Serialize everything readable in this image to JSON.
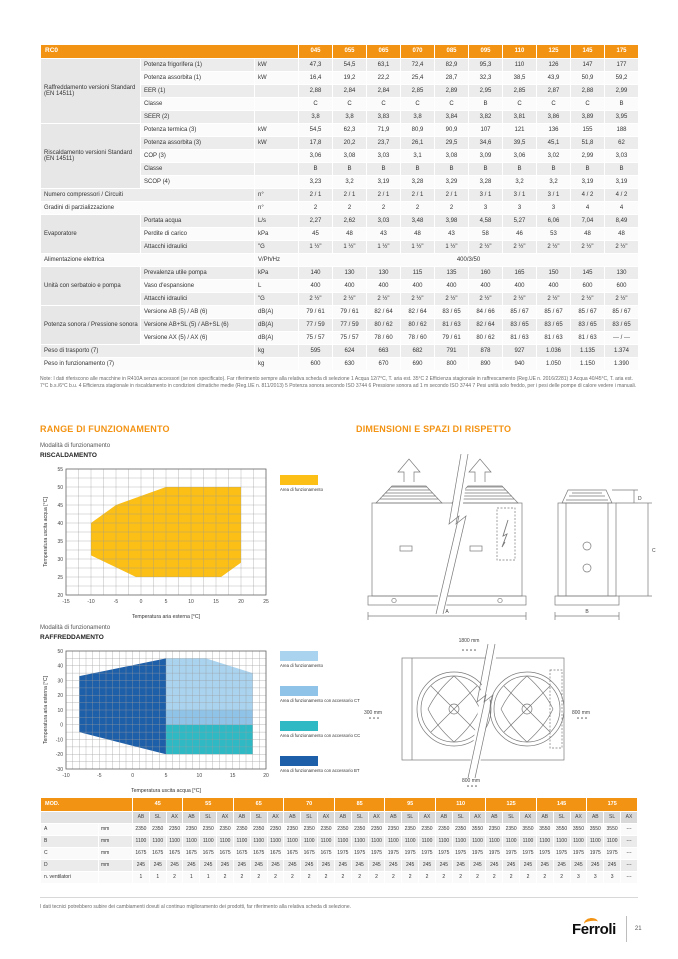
{
  "colors": {
    "orange": "#F39313",
    "yellow": "#FBBF15",
    "blue_light": "#A9D3EF",
    "blue_mid": "#8FC3E8",
    "teal": "#2FB9C5",
    "blue_dark": "#1E5FA9"
  },
  "sections": {
    "range_title": "RANGE DI FUNZIONAMENTO",
    "dim_title": "DIMENSIONI E SPAZI DI RISPETTO"
  },
  "main_table": {
    "title": "RC0",
    "models": [
      "045",
      "055",
      "065",
      "070",
      "085",
      "095",
      "110",
      "125",
      "145",
      "175"
    ],
    "rows": [
      {
        "group": "Raffreddamento versioni Standard (EN 14511)",
        "group_span": 5,
        "label": "Potenza frigorifera (1)",
        "unit": "kW",
        "values": [
          "47,3",
          "54,5",
          "63,1",
          "72,4",
          "82,9",
          "95,3",
          "110",
          "126",
          "147",
          "177"
        ]
      },
      {
        "label": "Potenza assorbita (1)",
        "unit": "kW",
        "values": [
          "16,4",
          "19,2",
          "22,2",
          "25,4",
          "28,7",
          "32,3",
          "38,5",
          "43,9",
          "50,9",
          "59,2"
        ]
      },
      {
        "label": "EER (1)",
        "unit": "",
        "values": [
          "2,88",
          "2,84",
          "2,84",
          "2,85",
          "2,89",
          "2,95",
          "2,85",
          "2,87",
          "2,88",
          "2,99"
        ]
      },
      {
        "label": "Classe",
        "unit": "",
        "values": [
          "C",
          "C",
          "C",
          "C",
          "C",
          "B",
          "C",
          "C",
          "C",
          "B"
        ]
      },
      {
        "label": "SEER (2)",
        "unit": "",
        "values": [
          "3,8",
          "3,8",
          "3,83",
          "3,8",
          "3,84",
          "3,82",
          "3,81",
          "3,86",
          "3,89",
          "3,95"
        ]
      },
      {
        "group": "Riscaldamento versioni Standard (EN 14511)",
        "group_span": 5,
        "label": "Potenza termica (3)",
        "unit": "kW",
        "values": [
          "54,5",
          "62,3",
          "71,9",
          "80,9",
          "90,9",
          "107",
          "121",
          "136",
          "155",
          "188"
        ]
      },
      {
        "label": "Potenza assorbita (3)",
        "unit": "kW",
        "values": [
          "17,8",
          "20,2",
          "23,7",
          "26,1",
          "29,5",
          "34,6",
          "39,5",
          "45,1",
          "51,8",
          "62"
        ]
      },
      {
        "label": "COP (3)",
        "unit": "",
        "values": [
          "3,06",
          "3,08",
          "3,03",
          "3,1",
          "3,08",
          "3,09",
          "3,06",
          "3,02",
          "2,99",
          "3,03"
        ]
      },
      {
        "label": "Classe",
        "unit": "",
        "values": [
          "B",
          "B",
          "B",
          "B",
          "B",
          "B",
          "B",
          "B",
          "B",
          "B"
        ]
      },
      {
        "label": "SCOP (4)",
        "unit": "",
        "values": [
          "3,23",
          "3,2",
          "3,19",
          "3,28",
          "3,29",
          "3,28",
          "3,2",
          "3,2",
          "3,19",
          "3,19"
        ]
      },
      {
        "label": "Numero compressori / Circuiti",
        "label_colspan": 2,
        "unit": "n°",
        "values": [
          "2 / 1",
          "2 / 1",
          "2 / 1",
          "2 / 1",
          "2 / 1",
          "3 / 1",
          "3 / 1",
          "3 / 1",
          "4 / 2",
          "4 / 2"
        ]
      },
      {
        "label": "Gradini di parzializzazione",
        "label_colspan": 2,
        "unit": "n°",
        "values": [
          "2",
          "2",
          "2",
          "2",
          "2",
          "3",
          "3",
          "3",
          "4",
          "4"
        ]
      },
      {
        "group": "Evaporatore",
        "group_span": 3,
        "label": "Portata acqua",
        "unit": "L/s",
        "values": [
          "2,27",
          "2,62",
          "3,03",
          "3,48",
          "3,98",
          "4,58",
          "5,27",
          "6,06",
          "7,04",
          "8,49"
        ]
      },
      {
        "label": "Perdite di carico",
        "unit": "kPa",
        "values": [
          "45",
          "48",
          "43",
          "48",
          "43",
          "58",
          "46",
          "53",
          "48",
          "48"
        ]
      },
      {
        "label": "Attacchi idraulici",
        "unit": "\"G",
        "values": [
          "1 ½\"",
          "1 ½\"",
          "1 ½\"",
          "1 ½\"",
          "1 ½\"",
          "2 ½\"",
          "2 ½\"",
          "2 ½\"",
          "2 ½\"",
          "2 ½\""
        ]
      },
      {
        "label": "Alimentazione elettrica",
        "label_colspan": 2,
        "unit": "V/Ph/Hz",
        "span_value": "400/3/50"
      },
      {
        "group": "Unità con serbatoio e pompa",
        "group_span": 3,
        "label": "Prevalenza utile pompa",
        "unit": "kPa",
        "values": [
          "140",
          "130",
          "130",
          "115",
          "135",
          "160",
          "165",
          "150",
          "145",
          "130"
        ]
      },
      {
        "label": "Vaso d'espansione",
        "unit": "L",
        "values": [
          "400",
          "400",
          "400",
          "400",
          "400",
          "400",
          "400",
          "400",
          "600",
          "600"
        ]
      },
      {
        "label": "Attacchi idraulici",
        "unit": "\"G",
        "values": [
          "2 ½\"",
          "2 ½\"",
          "2 ½\"",
          "2 ½\"",
          "2 ½\"",
          "2 ½\"",
          "2 ½\"",
          "2 ½\"",
          "2 ½\"",
          "2 ½\""
        ]
      },
      {
        "group": "Potenza sonora / Pressione sonora",
        "group_span": 3,
        "label": "Versione AB (5) / AB (6)",
        "unit": "dB(A)",
        "values": [
          "79 / 61",
          "79 / 61",
          "82 / 64",
          "82 / 64",
          "83 / 65",
          "84 / 66",
          "85 / 67",
          "85 / 67",
          "85 / 67",
          "85 / 67"
        ]
      },
      {
        "label": "Versione AB+SL (5) / AB+SL (6)",
        "unit": "dB(A)",
        "values": [
          "77 / 59",
          "77 / 59",
          "80 / 62",
          "80 / 62",
          "81 / 63",
          "82 / 64",
          "83 / 65",
          "83 / 65",
          "83 / 65",
          "83 / 65"
        ]
      },
      {
        "label": "Versione AX (5) / AX (6)",
        "unit": "dB(A)",
        "values": [
          "75 / 57",
          "75 / 57",
          "78 / 60",
          "78 / 60",
          "79 / 61",
          "80 / 62",
          "81 / 63",
          "81 / 63",
          "81 / 63",
          "--- / ---"
        ]
      },
      {
        "label": "Peso di trasporto (7)",
        "label_colspan": 2,
        "unit": "kg",
        "values": [
          "595",
          "624",
          "663",
          "682",
          "791",
          "878",
          "927",
          "1.036",
          "1.135",
          "1.374"
        ]
      },
      {
        "label": "Peso in funzionamento (7)",
        "label_colspan": 2,
        "unit": "kg",
        "values": [
          "600",
          "630",
          "670",
          "690",
          "800",
          "890",
          "940",
          "1.050",
          "1.150",
          "1.390"
        ]
      }
    ]
  },
  "note_text": "Note: I dati riferiscono alle macchine in R410A senza accessori (se non specificato). Far riferimento sempre alla relativa scheda di selezione 1 Acqua 12/7°C, T. aria est. 35°C 2 Efficienza stagionale in raffrescamento (Reg.UE n. 2016/2281) 3 Acqua 40/45°C, T. aria est. 7°C b.s./6°C b.u. 4 Efficienza stagionale in riscaldamento in condizioni climatiche medie (Reg.UE n. 811/2013) 5 Potenza sonora secondo ISO 3744 6 Pressione sonora ad 1 m secondo ISO 3744 7 Pesi unità solo freddo, per i pesi delle pompe di calore vedere i manuali.",
  "chart_data": [
    {
      "type": "area",
      "subtitle": "Modalità di funzionamento",
      "title": "RISCALDAMENTO",
      "xlabel": "Temperatura aria esterna [°C]",
      "ylabel": "Temperatura uscita acqua [°C]",
      "xlim": [
        -15,
        25
      ],
      "ylim": [
        20,
        55
      ],
      "x_ticks": [
        -15,
        -10,
        -5,
        0,
        5,
        10,
        15,
        20,
        25
      ],
      "y_ticks": [
        20,
        25,
        30,
        35,
        40,
        45,
        50,
        55
      ],
      "grid": true,
      "legend_position": "right",
      "regions": [
        {
          "name": "Area di funzionamento",
          "color": "#FBBF15",
          "points": [
            [
              -10,
              40
            ],
            [
              -5,
              45
            ],
            [
              5,
              50
            ],
            [
              20,
              50
            ],
            [
              20,
              29
            ],
            [
              16,
              25
            ],
            [
              -1,
              25
            ],
            [
              -10,
              31
            ]
          ]
        }
      ],
      "legend": [
        {
          "label": "Area di funzionamento",
          "color": "#FBBF15"
        }
      ]
    },
    {
      "type": "area",
      "subtitle": "Modalità di funzionamento",
      "title": "RAFFREDDAMENTO",
      "xlabel": "Temperatura uscita acqua [°C]",
      "ylabel": "Temperatura aria esterna [°C]",
      "xlim": [
        -10,
        20
      ],
      "ylim": [
        -30,
        50
      ],
      "x_ticks": [
        -10,
        -5,
        0,
        5,
        10,
        15,
        20
      ],
      "y_ticks": [
        -30,
        -20,
        -10,
        0,
        10,
        20,
        30,
        40,
        50
      ],
      "grid": true,
      "legend_position": "right",
      "regions": [
        {
          "name": "Area di funzionamento",
          "color": "#A9D3EF",
          "points": [
            [
              5,
              45
            ],
            [
              11,
              45
            ],
            [
              18,
              35
            ],
            [
              18,
              10
            ],
            [
              5,
              10
            ]
          ]
        },
        {
          "name": "Area di funzionamento con accessorio CT",
          "color": "#8FC3E8",
          "points": [
            [
              5,
              10
            ],
            [
              18,
              10
            ],
            [
              18,
              0
            ],
            [
              5,
              0
            ]
          ]
        },
        {
          "name": "Area di funzionamento con accessorio CC",
          "color": "#2FB9C5",
          "points": [
            [
              5,
              0
            ],
            [
              18,
              0
            ],
            [
              18,
              -20
            ],
            [
              5,
              -20
            ]
          ]
        },
        {
          "name": "Area di funzionamento con accessorio BT",
          "color": "#1E5FA9",
          "points": [
            [
              -8,
              33
            ],
            [
              5,
              45
            ],
            [
              5,
              -20
            ],
            [
              -8,
              -5
            ]
          ]
        }
      ],
      "legend": [
        {
          "label": "Area di funzionamento",
          "color": "#A9D3EF"
        },
        {
          "label": "Area di funzionamento con accessorio CT",
          "color": "#8FC3E8"
        },
        {
          "label": "Area di funzionamento con accessorio CC",
          "color": "#2FB9C5"
        },
        {
          "label": "Area di funzionamento con accessorio BT",
          "color": "#1E5FA9"
        }
      ]
    }
  ],
  "drawings": {
    "dim_a": "A",
    "dim_b": "B",
    "dim_c": "C",
    "dim_d": "D",
    "clearance_top": "1800 mm",
    "clearance_left": "300 mm",
    "clearance_right": "800 mm",
    "clearance_bottom": "800 mm"
  },
  "mod_table": {
    "title": "MOD.",
    "groups": [
      "45",
      "55",
      "65",
      "70",
      "85",
      "95",
      "110",
      "125",
      "145",
      "175"
    ],
    "sub_headers": [
      "AB",
      "SL",
      "AX"
    ],
    "rows": [
      {
        "label": "A",
        "unit": "mm",
        "values": [
          "2350",
          "2350",
          "2350",
          "2350",
          "2350",
          "2350",
          "2350",
          "2350",
          "2350",
          "2350",
          "2350",
          "2350",
          "2350",
          "2350",
          "2350",
          "2350",
          "2350",
          "2350",
          "2350",
          "2350",
          "3550",
          "2350",
          "2350",
          "3550",
          "3550",
          "3550",
          "3550",
          "3550",
          "3550",
          "---"
        ]
      },
      {
        "label": "B",
        "unit": "mm",
        "values": [
          "1100",
          "1100",
          "1100",
          "1100",
          "1100",
          "1100",
          "1100",
          "1100",
          "1100",
          "1100",
          "1100",
          "1100",
          "1100",
          "1100",
          "1100",
          "1100",
          "1100",
          "1100",
          "1100",
          "1100",
          "1100",
          "1100",
          "1100",
          "1100",
          "1100",
          "1100",
          "1100",
          "1100",
          "1100",
          "---"
        ]
      },
      {
        "label": "C",
        "unit": "mm",
        "values": [
          "1675",
          "1675",
          "1675",
          "1675",
          "1675",
          "1675",
          "1675",
          "1675",
          "1675",
          "1675",
          "1675",
          "1675",
          "1975",
          "1975",
          "1975",
          "1975",
          "1975",
          "1975",
          "1975",
          "1975",
          "1975",
          "1975",
          "1975",
          "1975",
          "1975",
          "1975",
          "1975",
          "1975",
          "1975",
          "---"
        ]
      },
      {
        "label": "D",
        "unit": "mm",
        "values": [
          "245",
          "245",
          "245",
          "245",
          "245",
          "245",
          "245",
          "245",
          "245",
          "245",
          "245",
          "245",
          "245",
          "245",
          "245",
          "245",
          "245",
          "245",
          "245",
          "245",
          "245",
          "245",
          "245",
          "245",
          "245",
          "245",
          "245",
          "245",
          "245",
          "---"
        ]
      },
      {
        "label": "n. ventilatori",
        "unit": "",
        "values": [
          "1",
          "1",
          "2",
          "1",
          "1",
          "2",
          "2",
          "2",
          "2",
          "2",
          "2",
          "2",
          "2",
          "2",
          "2",
          "2",
          "2",
          "2",
          "2",
          "2",
          "2",
          "2",
          "2",
          "2",
          "2",
          "2",
          "3",
          "3",
          "3",
          "---"
        ]
      }
    ]
  },
  "footer": {
    "note": "I dati tecnici potrebbero subire dei cambiamenti dovuti al continuo miglioramento dei prodotti, far riferimento alla relativa scheda di selezione.",
    "brand": "Ferroli",
    "page_number": "21"
  }
}
